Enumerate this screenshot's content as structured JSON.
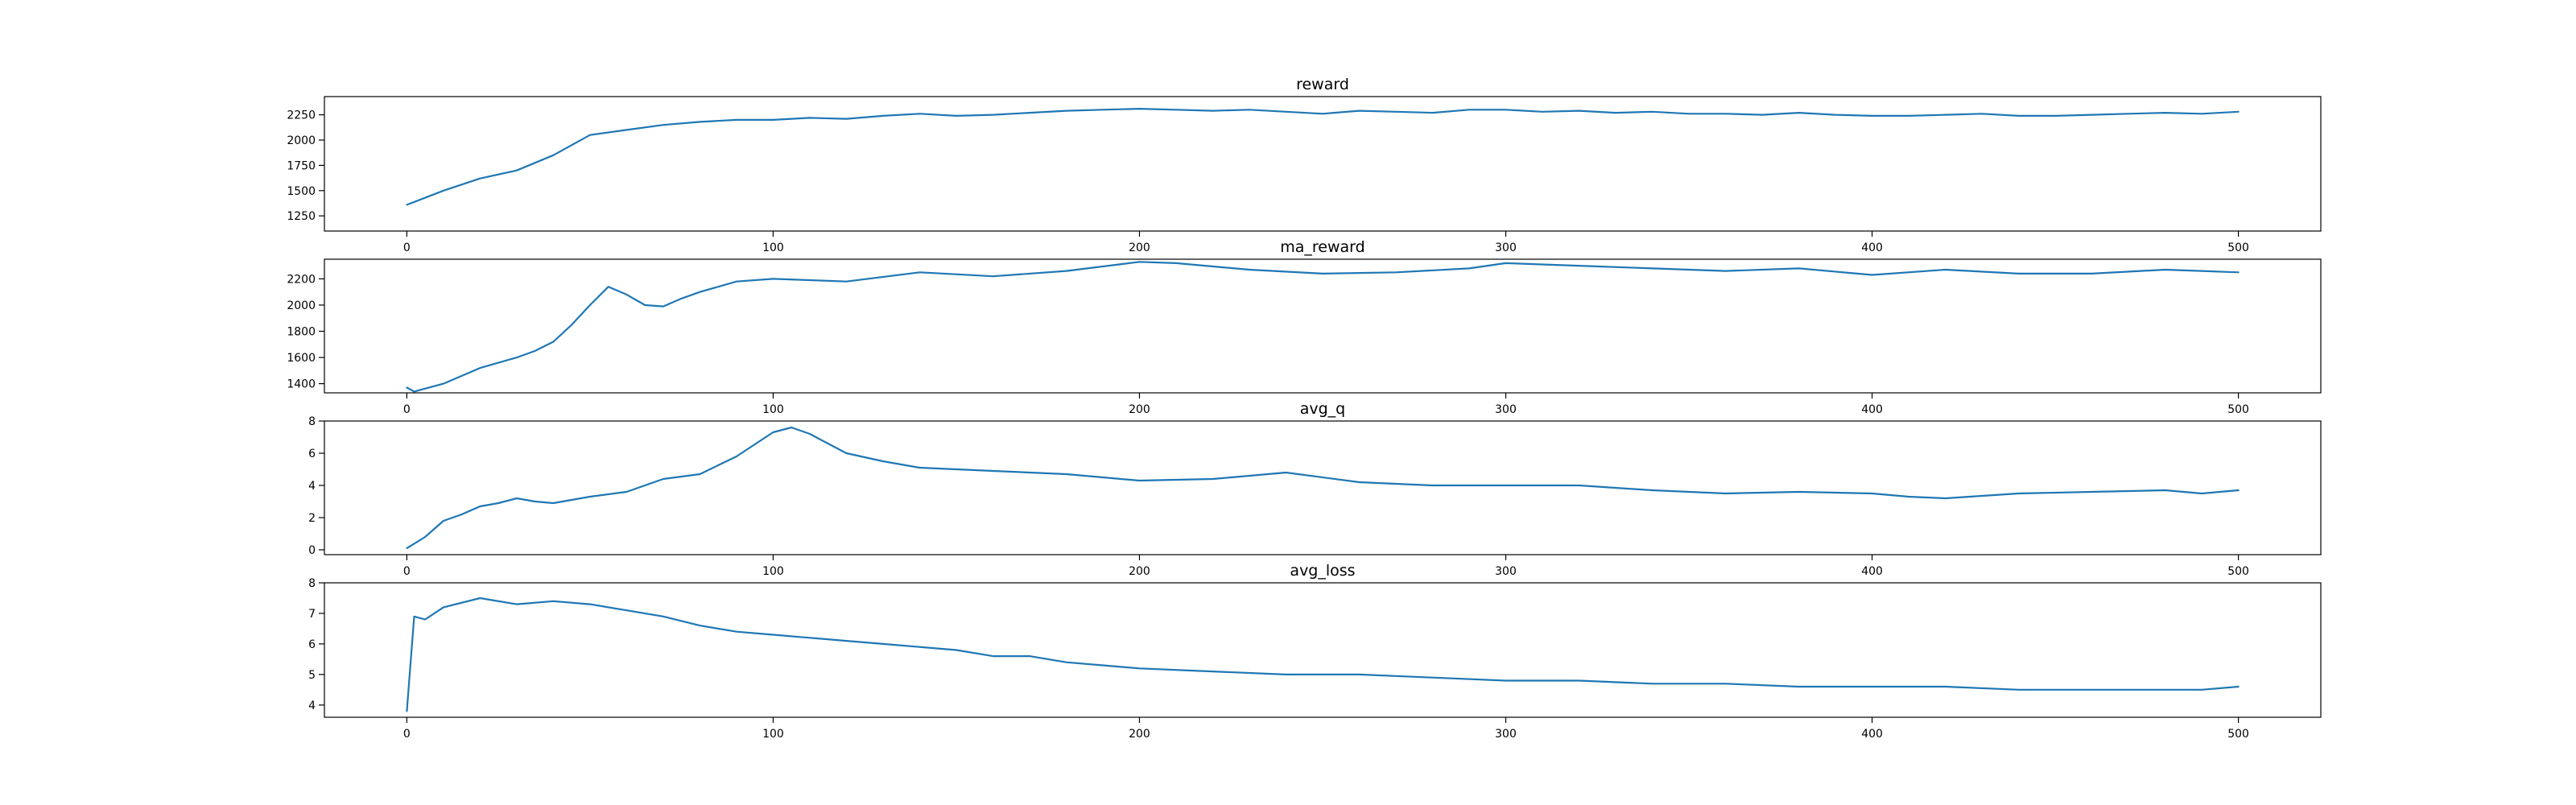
{
  "figure_title": "",
  "colors": {
    "line": "#1f77b4",
    "axes": "#000000",
    "background": "#ffffff"
  },
  "chart_data": [
    {
      "type": "line",
      "title": "reward",
      "xlabel": "",
      "ylabel": "",
      "xlim": [
        -22.5,
        522.5
      ],
      "ylim": [
        1100,
        2430
      ],
      "xticks": [
        0,
        100,
        200,
        300,
        400,
        500
      ],
      "xtick_labels": [
        "0",
        "100",
        "200",
        "300",
        "400",
        "500"
      ],
      "yticks": [
        1250,
        1500,
        1750,
        2000,
        2250
      ],
      "ytick_labels": [
        "1250",
        "1500",
        "1750",
        "2000",
        "2250"
      ],
      "grid": false,
      "series": [
        {
          "name": "reward",
          "x": [
            0,
            10,
            20,
            30,
            40,
            50,
            60,
            70,
            80,
            90,
            100,
            110,
            120,
            130,
            140,
            150,
            160,
            170,
            180,
            190,
            200,
            210,
            220,
            230,
            240,
            250,
            260,
            270,
            280,
            290,
            300,
            310,
            320,
            330,
            340,
            350,
            360,
            370,
            380,
            390,
            400,
            410,
            420,
            430,
            440,
            450,
            460,
            470,
            480,
            490,
            500
          ],
          "values": [
            1360,
            1500,
            1620,
            1700,
            1850,
            2050,
            2100,
            2150,
            2180,
            2200,
            2200,
            2220,
            2210,
            2240,
            2260,
            2240,
            2250,
            2270,
            2290,
            2300,
            2310,
            2300,
            2290,
            2300,
            2280,
            2260,
            2290,
            2280,
            2270,
            2300,
            2300,
            2280,
            2290,
            2270,
            2280,
            2260,
            2260,
            2250,
            2270,
            2250,
            2240,
            2240,
            2250,
            2260,
            2240,
            2240,
            2250,
            2260,
            2270,
            2260,
            2280
          ]
        }
      ]
    },
    {
      "type": "line",
      "title": "ma_reward",
      "xlabel": "",
      "ylabel": "",
      "xlim": [
        -22.5,
        522.5
      ],
      "ylim": [
        1330,
        2350
      ],
      "xticks": [
        0,
        100,
        200,
        300,
        400,
        500
      ],
      "xtick_labels": [
        "0",
        "100",
        "200",
        "300",
        "400",
        "500"
      ],
      "yticks": [
        1400,
        1600,
        1800,
        2000,
        2200
      ],
      "ytick_labels": [
        "1400",
        "1600",
        "1800",
        "2000",
        "2200"
      ],
      "grid": false,
      "series": [
        {
          "name": "ma_reward",
          "x": [
            0,
            2,
            10,
            20,
            30,
            35,
            40,
            45,
            50,
            55,
            60,
            65,
            70,
            75,
            80,
            90,
            100,
            110,
            120,
            140,
            160,
            180,
            200,
            210,
            230,
            250,
            270,
            290,
            300,
            320,
            340,
            360,
            380,
            400,
            420,
            440,
            460,
            480,
            490,
            500
          ],
          "values": [
            1370,
            1340,
            1400,
            1520,
            1600,
            1650,
            1720,
            1850,
            2000,
            2140,
            2080,
            2000,
            1990,
            2050,
            2100,
            2180,
            2200,
            2190,
            2180,
            2250,
            2220,
            2260,
            2330,
            2320,
            2270,
            2240,
            2250,
            2280,
            2320,
            2300,
            2280,
            2260,
            2280,
            2230,
            2270,
            2240,
            2240,
            2270,
            2260,
            2250
          ]
        }
      ]
    },
    {
      "type": "line",
      "title": "avg_q",
      "xlabel": "",
      "ylabel": "",
      "xlim": [
        -22.5,
        522.5
      ],
      "ylim": [
        -0.3,
        8.0
      ],
      "xticks": [
        0,
        100,
        200,
        300,
        400,
        500
      ],
      "xtick_labels": [
        "0",
        "100",
        "200",
        "300",
        "400",
        "500"
      ],
      "yticks": [
        0,
        2,
        4,
        6,
        8
      ],
      "ytick_labels": [
        "0",
        "2",
        "4",
        "6",
        "8"
      ],
      "grid": false,
      "series": [
        {
          "name": "avg_q",
          "x": [
            0,
            5,
            10,
            15,
            20,
            25,
            30,
            35,
            40,
            50,
            60,
            70,
            80,
            90,
            100,
            105,
            110,
            120,
            130,
            140,
            150,
            160,
            170,
            180,
            190,
            200,
            220,
            240,
            260,
            280,
            300,
            320,
            340,
            360,
            380,
            400,
            410,
            420,
            440,
            460,
            480,
            490,
            500
          ],
          "values": [
            0.1,
            0.8,
            1.8,
            2.2,
            2.7,
            2.9,
            3.2,
            3.0,
            2.9,
            3.3,
            3.6,
            4.4,
            4.7,
            5.8,
            7.3,
            7.6,
            7.2,
            6.0,
            5.5,
            5.1,
            5.0,
            4.9,
            4.8,
            4.7,
            4.5,
            4.3,
            4.4,
            4.8,
            4.2,
            4.0,
            4.0,
            4.0,
            3.7,
            3.5,
            3.6,
            3.5,
            3.3,
            3.2,
            3.5,
            3.6,
            3.7,
            3.5,
            3.7
          ]
        }
      ]
    },
    {
      "type": "line",
      "title": "avg_loss",
      "xlabel": "",
      "ylabel": "",
      "xlim": [
        -22.5,
        522.5
      ],
      "ylim": [
        3.6,
        8.0
      ],
      "xticks": [
        0,
        100,
        200,
        300,
        400,
        500
      ],
      "xtick_labels": [
        "0",
        "100",
        "200",
        "300",
        "400",
        "500"
      ],
      "yticks": [
        4,
        5,
        6,
        7,
        8
      ],
      "ytick_labels": [
        "4",
        "5",
        "6",
        "7",
        "8"
      ],
      "grid": false,
      "series": [
        {
          "name": "avg_loss",
          "x": [
            0,
            2,
            5,
            10,
            20,
            30,
            40,
            50,
            60,
            70,
            80,
            90,
            100,
            110,
            120,
            130,
            140,
            150,
            160,
            170,
            180,
            190,
            200,
            220,
            240,
            260,
            280,
            300,
            320,
            340,
            360,
            380,
            400,
            420,
            440,
            460,
            480,
            490,
            500
          ],
          "values": [
            3.8,
            6.9,
            6.8,
            7.2,
            7.5,
            7.3,
            7.4,
            7.3,
            7.1,
            6.9,
            6.6,
            6.4,
            6.3,
            6.2,
            6.1,
            6.0,
            5.9,
            5.8,
            5.6,
            5.6,
            5.4,
            5.3,
            5.2,
            5.1,
            5.0,
            5.0,
            4.9,
            4.8,
            4.8,
            4.7,
            4.7,
            4.6,
            4.6,
            4.6,
            4.5,
            4.5,
            4.5,
            4.5,
            4.6
          ]
        }
      ]
    }
  ]
}
